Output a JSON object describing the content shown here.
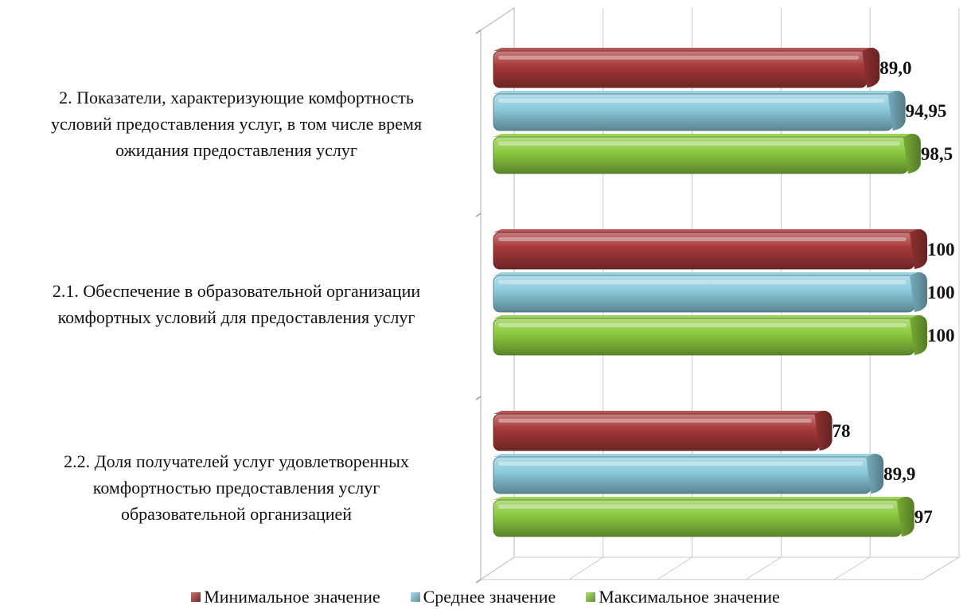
{
  "chart_data": {
    "type": "bar",
    "orientation": "horizontal",
    "style": "3d-cylinder",
    "categories": [
      "2. Показатели, характеризующие комфортность условий предоставления услуг, в том числе время ожидания предоставления услуг",
      "2.1. Обеспечение в образовательной организации комфортных условий для предоставления услуг",
      "2.2. Доля получателей услуг удовлетворенных комфортностью предоставления услуг образовательной организацией"
    ],
    "category_lines": [
      [
        "2. Показатели, характеризующие комфортность",
        "условий предоставления услуг, в том числе время",
        "ожидания предоставления услуг"
      ],
      [
        "2.1. Обеспечение в образовательной организации",
        "комфортных условий для предоставления услуг"
      ],
      [
        "2.2. Доля получателей услуг удовлетворенных",
        "комфортностью предоставления услуг",
        "образовательной организацией"
      ]
    ],
    "series": [
      {
        "name": "Минимальное значение",
        "color": "#A8393A",
        "values": [
          89.0,
          100,
          78
        ],
        "labels": [
          "89,0",
          "100",
          "78"
        ]
      },
      {
        "name": "Среднее значение",
        "color": "#8BCBDD",
        "values": [
          94.95,
          100,
          89.9
        ],
        "labels": [
          "94,95",
          "100",
          "89,9"
        ]
      },
      {
        "name": "Максимальное значение",
        "color": "#8CCB3F",
        "values": [
          98.5,
          100,
          97
        ],
        "labels": [
          "98,5",
          "100",
          "97"
        ]
      }
    ],
    "xlim": [
      0,
      100
    ],
    "grid": true,
    "legend": "bottom",
    "title": "",
    "xlabel": "",
    "ylabel": ""
  }
}
